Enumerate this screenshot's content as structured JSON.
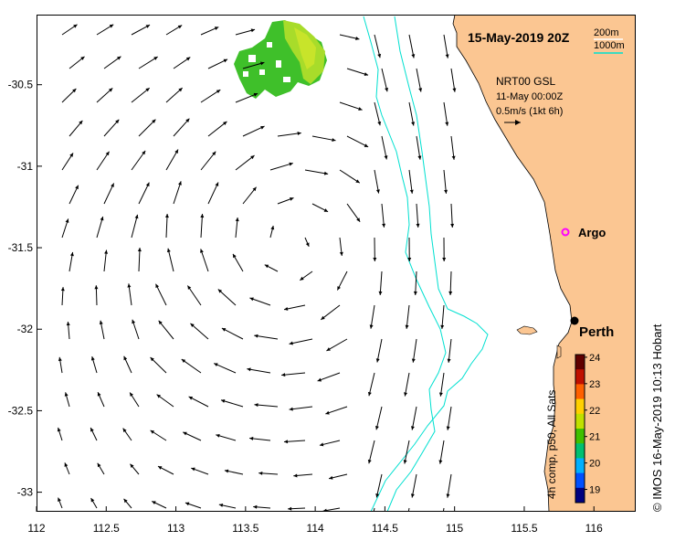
{
  "map": {
    "title": "15-May-2019 20Z",
    "location_label": "Perth",
    "argo_label": "Argo",
    "bounds": {
      "lon": [
        112.0,
        116.3
      ],
      "lat": [
        -33.12,
        -30.07
      ]
    }
  },
  "depth_legend": {
    "items": [
      {
        "label": "200m",
        "color": "#ffffff"
      },
      {
        "label": "1000m",
        "color": "#00e0d0"
      }
    ]
  },
  "current_legend": {
    "lines": [
      "NRT00 GSL",
      "11-May 00:00Z",
      "0.5m/s (1kt 6h)"
    ]
  },
  "axes": {
    "x_ticks": [
      "112",
      "112.5",
      "113",
      "113.5",
      "114",
      "114.5",
      "115",
      "115.5",
      "116"
    ],
    "x_values": [
      112,
      112.5,
      113,
      113.5,
      114,
      114.5,
      115,
      115.5,
      116
    ],
    "y_ticks": [
      "-30.5",
      "-31",
      "-31.5",
      "-32",
      "-32.5",
      "-33"
    ],
    "y_values": [
      -30.5,
      -31,
      -31.5,
      -32,
      -32.5,
      -33
    ]
  },
  "colorbar": {
    "label": "4h comp, p50, All Sats",
    "ticks": [
      "19",
      "20",
      "21",
      "22",
      "23",
      "24"
    ],
    "min": 18.5,
    "max": 24.1,
    "colors": [
      "#000080",
      "#0050ff",
      "#00b0ff",
      "#00c070",
      "#40c000",
      "#c0e000",
      "#ffd000",
      "#ff6000",
      "#c01000",
      "#600000"
    ]
  },
  "credit": "© IMOS 16-May-2019 10:13 Hobart",
  "colors": {
    "land": "#fbc692",
    "isobath_1000": "#00e0d0",
    "argo": "#ff00ff"
  }
}
